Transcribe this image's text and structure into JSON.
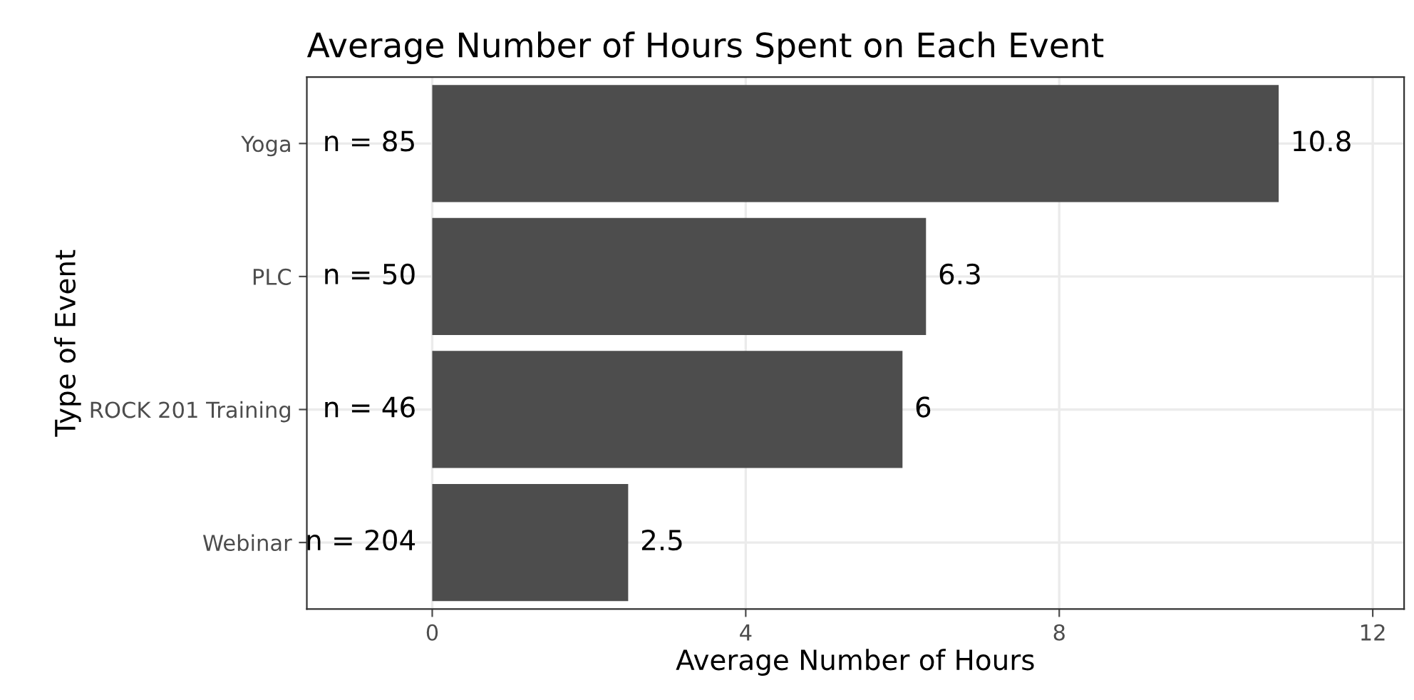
{
  "chart_data": {
    "type": "bar",
    "orientation": "horizontal",
    "title": "Average Number of Hours Spent on Each Event",
    "xlabel": "Average Number of Hours",
    "ylabel": "Type of Event",
    "categories": [
      "Yoga",
      "PLC",
      "ROCK 201 Training",
      "Webinar"
    ],
    "values": [
      10.8,
      6.3,
      6,
      2.5
    ],
    "color": "#4d4d4d",
    "data_labels": true,
    "xlim": [
      -1.6,
      12.4
    ],
    "xticks": [
      0,
      4,
      8,
      12
    ],
    "grid": true,
    "annotations": [
      "n = 85",
      "n = 50",
      "n = 46",
      "n = 204"
    ]
  }
}
